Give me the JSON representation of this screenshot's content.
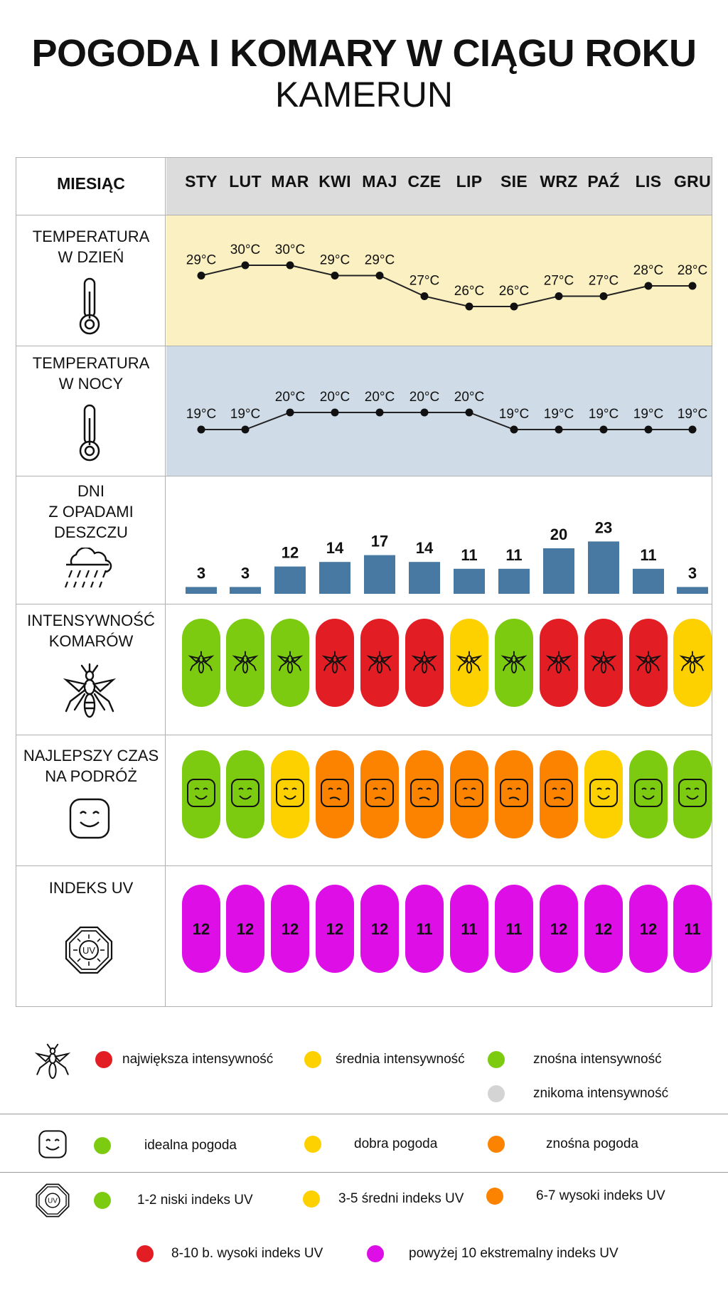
{
  "title": "POGODA I KOMARY W CIĄGU ROKU",
  "subtitle": "KAMERUN",
  "rows": {
    "month": "MIESIĄC",
    "day_temp": [
      "TEMPERATURA",
      "W DZIEŃ"
    ],
    "night_temp": [
      "TEMPERATURA",
      "W NOCY"
    ],
    "rain": [
      "DNI",
      "Z OPADAMI",
      "DESZCZU"
    ],
    "mosquito": [
      "INTENSYWNOŚĆ",
      "KOMARÓW"
    ],
    "travel": [
      "NAJLEPSZY CZAS",
      "NA PODRÓŻ"
    ],
    "uv": [
      "INDEKS UV"
    ]
  },
  "colors": {
    "day_band": "#fbf0c1",
    "night_band": "#cfdbe6",
    "header_band": "#dcdcdc",
    "bar": "#4779a3",
    "red": "#e31d24",
    "yellow": "#fdd000",
    "green": "#7ccb10",
    "orange": "#fb8300",
    "magenta": "#dd0fe6",
    "grey": "#d4d4d4"
  },
  "chart_data": {
    "type": "table",
    "months": [
      "STY",
      "LUT",
      "MAR",
      "KWI",
      "MAJ",
      "CZE",
      "LIP",
      "SIE",
      "WRZ",
      "PAŹ",
      "LIS",
      "GRU"
    ],
    "day_temperature": {
      "values": [
        29,
        30,
        30,
        29,
        29,
        27,
        26,
        26,
        27,
        27,
        28,
        28
      ],
      "labels": [
        "29°C",
        "30°C",
        "30°C",
        "29°C",
        "29°C",
        "27°C",
        "26°C",
        "26°C",
        "27°C",
        "27°C",
        "28°C",
        "28°C"
      ]
    },
    "night_temperature": {
      "values": [
        19,
        19,
        20,
        20,
        20,
        20,
        20,
        19,
        19,
        19,
        19,
        19
      ],
      "labels": [
        "19°C",
        "19°C",
        "20°C",
        "20°C",
        "20°C",
        "20°C",
        "20°C",
        "19°C",
        "19°C",
        "19°C",
        "19°C",
        "19°C"
      ]
    },
    "rain_days": {
      "values": [
        3,
        3,
        12,
        14,
        17,
        14,
        11,
        11,
        20,
        23,
        11,
        3
      ],
      "labels": [
        "3",
        "3",
        "12",
        "14",
        "17",
        "14",
        "11",
        "11",
        "20",
        "23",
        "11",
        "3"
      ]
    },
    "mosquito_intensity": [
      "green",
      "green",
      "green",
      "red",
      "red",
      "red",
      "yellow",
      "green",
      "red",
      "red",
      "red",
      "yellow"
    ],
    "travel_time": [
      "green",
      "green",
      "yellow",
      "orange",
      "orange",
      "orange",
      "orange",
      "orange",
      "orange",
      "yellow",
      "green",
      "green"
    ],
    "uv_index": {
      "values": [
        12,
        12,
        12,
        12,
        12,
        11,
        11,
        11,
        12,
        12,
        12,
        11
      ],
      "labels": [
        "12",
        "12",
        "12",
        "12",
        "12",
        "11",
        "11",
        "11",
        "12",
        "12",
        "12",
        "11"
      ]
    }
  },
  "legend": {
    "mosquito": [
      {
        "color": "red",
        "label": "największa intensywność"
      },
      {
        "color": "yellow",
        "label": "średnia intensywność"
      },
      {
        "color": "green",
        "label": "znośna intensywność"
      },
      {
        "color": "grey",
        "label": "znikoma intensywność"
      }
    ],
    "weather": [
      {
        "color": "green",
        "label": "idealna pogoda"
      },
      {
        "color": "yellow",
        "label": "dobra pogoda"
      },
      {
        "color": "orange",
        "label": "znośna pogoda"
      }
    ],
    "uv": [
      {
        "color": "green",
        "label": "1-2 niski indeks UV"
      },
      {
        "color": "yellow",
        "label": "3-5 średni indeks UV"
      },
      {
        "color": "orange",
        "label": "6-7 wysoki indeks UV"
      },
      {
        "color": "red",
        "label": "8-10 b. wysoki indeks UV"
      },
      {
        "color": "magenta",
        "label": "powyżej 10 ekstremalny indeks UV"
      }
    ],
    "icon_uv_text": "UV"
  }
}
